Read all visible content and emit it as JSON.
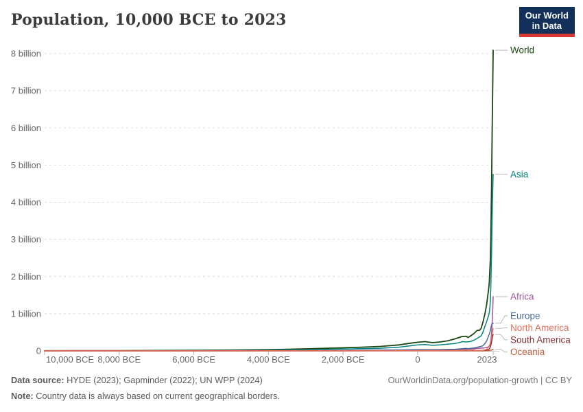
{
  "header": {
    "title": "Population, 10,000 BCE to 2023",
    "logo": {
      "line1": "Our World",
      "line2": "in Data",
      "bg_color": "#12305a",
      "bar_color": "#d73831"
    }
  },
  "footer": {
    "datasource_label": "Data source:",
    "datasource_text": " HYDE (2023); Gapminder (2022); UN WPP (2024)",
    "note_label": "Note:",
    "note_text": " Country data is always based on current geographical borders.",
    "right_text": "OurWorldinData.org/population-growth | CC BY"
  },
  "chart_data": {
    "type": "line",
    "title": "Population, 10,000 BCE to 2023",
    "xlabel": "",
    "ylabel": "",
    "xlim": [
      -10000,
      2023
    ],
    "ylim_billions": [
      0,
      8
    ],
    "grid": "dashed-horizontal",
    "legend_position": "right-end-labels",
    "y_ticks": [
      {
        "value": 0,
        "label": "0"
      },
      {
        "value": 1,
        "label": "1 billion"
      },
      {
        "value": 2,
        "label": "2 billion"
      },
      {
        "value": 3,
        "label": "3 billion"
      },
      {
        "value": 4,
        "label": "4 billion"
      },
      {
        "value": 5,
        "label": "5 billion"
      },
      {
        "value": 6,
        "label": "6 billion"
      },
      {
        "value": 7,
        "label": "7 billion"
      },
      {
        "value": 8,
        "label": "8 billion"
      }
    ],
    "x_ticks": [
      {
        "year": -10000,
        "label": "10,000 BCE"
      },
      {
        "year": -8000,
        "label": "8,000 BCE"
      },
      {
        "year": -6000,
        "label": "6,000 BCE"
      },
      {
        "year": -4000,
        "label": "4,000 BCE"
      },
      {
        "year": -2000,
        "label": "2,000 BCE"
      },
      {
        "year": 0,
        "label": "0"
      },
      {
        "year": 2023,
        "label": "2023"
      }
    ],
    "series": [
      {
        "name": "World",
        "color": "#18470F",
        "points_year_billions": [
          [
            -10000,
            0.004
          ],
          [
            -9000,
            0.006
          ],
          [
            -8000,
            0.008
          ],
          [
            -7000,
            0.011
          ],
          [
            -6000,
            0.016
          ],
          [
            -5000,
            0.022
          ],
          [
            -4000,
            0.035
          ],
          [
            -3500,
            0.044
          ],
          [
            -3000,
            0.055
          ],
          [
            -2500,
            0.068
          ],
          [
            -2000,
            0.083
          ],
          [
            -1500,
            0.1
          ],
          [
            -1000,
            0.12
          ],
          [
            -750,
            0.14
          ],
          [
            -500,
            0.16
          ],
          [
            -250,
            0.2
          ],
          [
            0,
            0.232
          ],
          [
            200,
            0.25
          ],
          [
            400,
            0.222
          ],
          [
            600,
            0.24
          ],
          [
            800,
            0.27
          ],
          [
            1000,
            0.323
          ],
          [
            1100,
            0.358
          ],
          [
            1200,
            0.39
          ],
          [
            1300,
            0.392
          ],
          [
            1350,
            0.36
          ],
          [
            1400,
            0.39
          ],
          [
            1500,
            0.461
          ],
          [
            1600,
            0.554
          ],
          [
            1650,
            0.55
          ],
          [
            1700,
            0.603
          ],
          [
            1750,
            0.77
          ],
          [
            1800,
            0.985
          ],
          [
            1850,
            1.26
          ],
          [
            1900,
            1.65
          ],
          [
            1910,
            1.75
          ],
          [
            1920,
            1.86
          ],
          [
            1930,
            2.07
          ],
          [
            1940,
            2.3
          ],
          [
            1950,
            2.49
          ],
          [
            1960,
            3.02
          ],
          [
            1970,
            3.69
          ],
          [
            1980,
            4.44
          ],
          [
            1990,
            5.32
          ],
          [
            2000,
            6.15
          ],
          [
            2010,
            6.99
          ],
          [
            2023,
            8.09
          ]
        ]
      },
      {
        "name": "Asia",
        "color": "#00847E",
        "points_year_billions": [
          [
            -10000,
            0.002
          ],
          [
            -8000,
            0.004
          ],
          [
            -6000,
            0.009
          ],
          [
            -5000,
            0.013
          ],
          [
            -4000,
            0.02
          ],
          [
            -3000,
            0.033
          ],
          [
            -2000,
            0.05
          ],
          [
            -1000,
            0.072
          ],
          [
            -500,
            0.1
          ],
          [
            0,
            0.16
          ],
          [
            200,
            0.17
          ],
          [
            400,
            0.15
          ],
          [
            600,
            0.16
          ],
          [
            800,
            0.18
          ],
          [
            1000,
            0.2
          ],
          [
            1100,
            0.22
          ],
          [
            1200,
            0.25
          ],
          [
            1300,
            0.24
          ],
          [
            1400,
            0.25
          ],
          [
            1500,
            0.284
          ],
          [
            1600,
            0.34
          ],
          [
            1700,
            0.402
          ],
          [
            1750,
            0.5
          ],
          [
            1800,
            0.656
          ],
          [
            1850,
            0.79
          ],
          [
            1900,
            0.95
          ],
          [
            1920,
            1.03
          ],
          [
            1940,
            1.22
          ],
          [
            1950,
            1.4
          ],
          [
            1960,
            1.7
          ],
          [
            1970,
            2.14
          ],
          [
            1980,
            2.63
          ],
          [
            1990,
            3.21
          ],
          [
            2000,
            3.74
          ],
          [
            2010,
            4.21
          ],
          [
            2023,
            4.75
          ]
        ]
      },
      {
        "name": "Africa",
        "color": "#A2559C",
        "points_year_billions": [
          [
            -10000,
            0.001
          ],
          [
            -8000,
            0.002
          ],
          [
            -6000,
            0.004
          ],
          [
            -4000,
            0.007
          ],
          [
            -2000,
            0.015
          ],
          [
            0,
            0.026
          ],
          [
            500,
            0.032
          ],
          [
            1000,
            0.04
          ],
          [
            1500,
            0.057
          ],
          [
            1700,
            0.076
          ],
          [
            1800,
            0.081
          ],
          [
            1850,
            0.09
          ],
          [
            1900,
            0.108
          ],
          [
            1920,
            0.125
          ],
          [
            1940,
            0.175
          ],
          [
            1950,
            0.228
          ],
          [
            1960,
            0.284
          ],
          [
            1970,
            0.365
          ],
          [
            1980,
            0.48
          ],
          [
            1990,
            0.638
          ],
          [
            2000,
            0.818
          ],
          [
            2010,
            1.044
          ],
          [
            2023,
            1.46
          ]
        ]
      },
      {
        "name": "Europe",
        "color": "#4C6A9C",
        "points_year_billions": [
          [
            -10000,
            0.0004
          ],
          [
            -6000,
            0.002
          ],
          [
            -4000,
            0.004
          ],
          [
            -2000,
            0.01
          ],
          [
            -1000,
            0.02
          ],
          [
            -500,
            0.025
          ],
          [
            0,
            0.033
          ],
          [
            500,
            0.03
          ],
          [
            1000,
            0.04
          ],
          [
            1200,
            0.06
          ],
          [
            1300,
            0.07
          ],
          [
            1350,
            0.06
          ],
          [
            1500,
            0.078
          ],
          [
            1600,
            0.1
          ],
          [
            1700,
            0.122
          ],
          [
            1750,
            0.14
          ],
          [
            1800,
            0.195
          ],
          [
            1850,
            0.27
          ],
          [
            1900,
            0.4
          ],
          [
            1920,
            0.45
          ],
          [
            1940,
            0.52
          ],
          [
            1950,
            0.549
          ],
          [
            1960,
            0.605
          ],
          [
            1970,
            0.657
          ],
          [
            1980,
            0.694
          ],
          [
            1990,
            0.721
          ],
          [
            2000,
            0.726
          ],
          [
            2010,
            0.735
          ],
          [
            2023,
            0.742
          ]
        ]
      },
      {
        "name": "South America",
        "color": "#883039",
        "points_year_billions": [
          [
            -10000,
            0.0001
          ],
          [
            -2000,
            0.002
          ],
          [
            0,
            0.008
          ],
          [
            500,
            0.012
          ],
          [
            1000,
            0.016
          ],
          [
            1500,
            0.02
          ],
          [
            1600,
            0.009
          ],
          [
            1700,
            0.01
          ],
          [
            1800,
            0.011
          ],
          [
            1850,
            0.02
          ],
          [
            1900,
            0.038
          ],
          [
            1920,
            0.056
          ],
          [
            1940,
            0.085
          ],
          [
            1950,
            0.113
          ],
          [
            1960,
            0.147
          ],
          [
            1970,
            0.192
          ],
          [
            1980,
            0.241
          ],
          [
            1990,
            0.297
          ],
          [
            2000,
            0.349
          ],
          [
            2010,
            0.393
          ],
          [
            2023,
            0.442
          ]
        ]
      },
      {
        "name": "Oceania",
        "color": "#BE5B39",
        "points_year_billions": [
          [
            -10000,
            0.0001
          ],
          [
            0,
            0.001
          ],
          [
            1000,
            0.0011
          ],
          [
            1500,
            0.0013
          ],
          [
            1700,
            0.0018
          ],
          [
            1800,
            0.002
          ],
          [
            1900,
            0.006
          ],
          [
            1950,
            0.013
          ],
          [
            1970,
            0.02
          ],
          [
            1990,
            0.027
          ],
          [
            2000,
            0.031
          ],
          [
            2010,
            0.037
          ],
          [
            2023,
            0.045
          ]
        ]
      },
      {
        "name": "North America",
        "color": "#E56E5A",
        "points_year_billions": [
          [
            -10000,
            0.0001
          ],
          [
            -4000,
            0.001
          ],
          [
            -2000,
            0.002
          ],
          [
            0,
            0.006
          ],
          [
            500,
            0.008
          ],
          [
            1000,
            0.01
          ],
          [
            1500,
            0.018
          ],
          [
            1600,
            0.012
          ],
          [
            1700,
            0.012
          ],
          [
            1800,
            0.024
          ],
          [
            1850,
            0.045
          ],
          [
            1900,
            0.105
          ],
          [
            1920,
            0.145
          ],
          [
            1940,
            0.18
          ],
          [
            1950,
            0.227
          ],
          [
            1960,
            0.277
          ],
          [
            1970,
            0.32
          ],
          [
            1980,
            0.368
          ],
          [
            1990,
            0.42
          ],
          [
            2000,
            0.486
          ],
          [
            2010,
            0.542
          ],
          [
            2023,
            0.604
          ]
        ]
      }
    ],
    "end_label_order": [
      "World",
      "Asia",
      "Africa",
      "Europe",
      "North America",
      "South America",
      "Oceania"
    ],
    "colors": {
      "grid": "#dddddd",
      "axis": "#cccccc",
      "tick": "#b5b5b5",
      "axis_text": "#666666",
      "leader": "#b8b8b8"
    }
  }
}
